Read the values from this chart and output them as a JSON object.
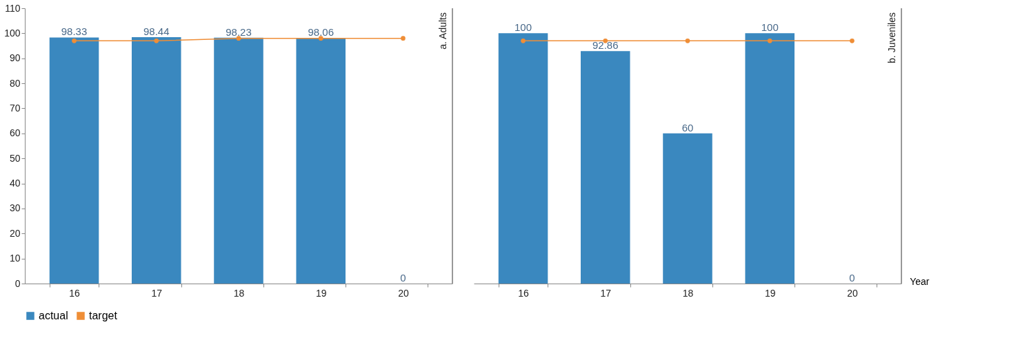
{
  "chart_data": [
    {
      "type": "bar",
      "title": "a. Adults",
      "categories": [
        "16",
        "17",
        "18",
        "19",
        "20"
      ],
      "ylim": [
        0,
        110
      ],
      "yticks": [
        0,
        10,
        20,
        30,
        40,
        50,
        60,
        70,
        80,
        90,
        100,
        110
      ],
      "legend": "bottom",
      "marker": "circle",
      "series": [
        {
          "name": "actual",
          "color": "#3a88bf",
          "values": [
            98.33,
            98.44,
            98.23,
            98.06,
            0
          ],
          "value_labels": [
            "98.33",
            "98.44",
            "98.23",
            "98.06",
            "0"
          ]
        },
        {
          "name": "target",
          "type": "line",
          "color": "#ef8e37",
          "values": [
            97,
            97,
            98,
            98,
            98
          ]
        }
      ]
    },
    {
      "type": "bar",
      "title": "b. Juveniles",
      "xlabel": "Year",
      "categories": [
        "16",
        "17",
        "18",
        "19",
        "20"
      ],
      "ylim": [
        0,
        110
      ],
      "tick_labels": "x",
      "legend": "bottom",
      "marker": "circle",
      "series": [
        {
          "name": "actual",
          "color": "#3a88bf",
          "values": [
            100,
            92.86,
            60,
            100,
            0
          ],
          "value_labels": [
            "100",
            "92.86",
            "60",
            "100",
            "0"
          ]
        },
        {
          "name": "target",
          "type": "line",
          "color": "#ef8e37",
          "values": [
            97,
            97,
            97,
            97,
            97
          ]
        }
      ]
    }
  ]
}
